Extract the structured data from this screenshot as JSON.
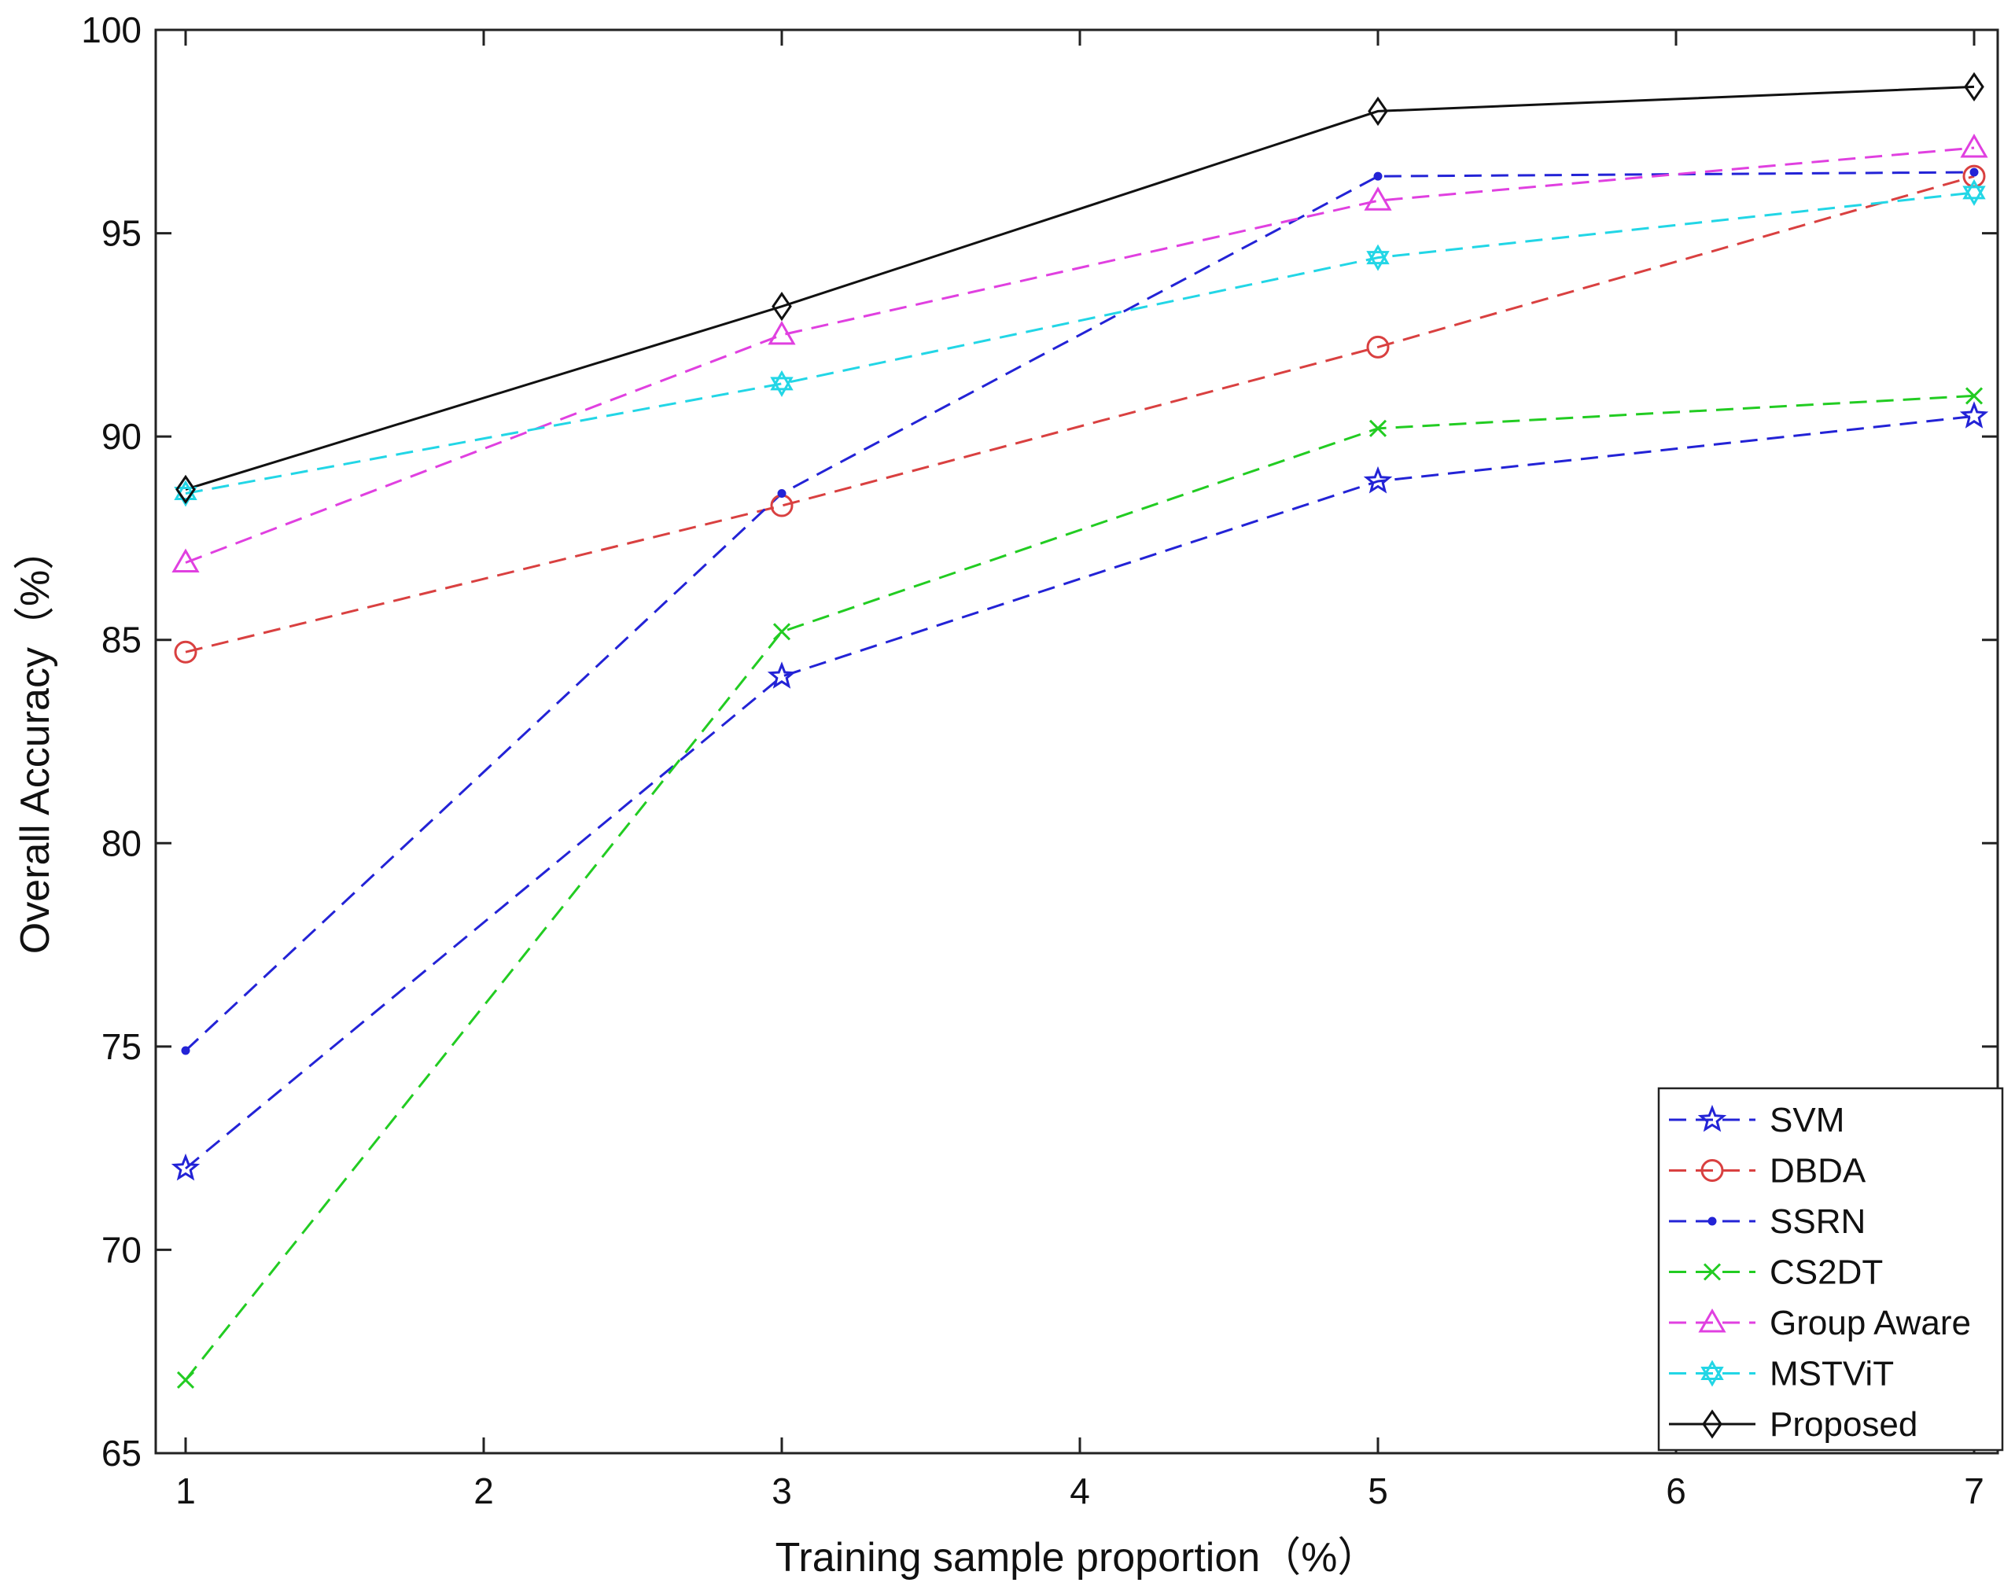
{
  "chart_data": {
    "type": "line",
    "xlabel": "Training sample proportion（%）",
    "ylabel": "Overall Accuracy（%）",
    "xlim": [
      1,
      7
    ],
    "ylim": [
      65,
      100
    ],
    "xticks": [
      1,
      2,
      3,
      4,
      5,
      6,
      7
    ],
    "yticks": [
      65,
      70,
      75,
      80,
      85,
      90,
      95,
      100
    ],
    "grid": false,
    "legend_position": "bottom-right",
    "x": [
      1,
      3,
      5,
      7
    ],
    "series": [
      {
        "name": "SVM",
        "values": [
          72.0,
          84.1,
          88.9,
          90.5
        ],
        "color": "#2323d6",
        "marker": "star",
        "dashed": true
      },
      {
        "name": "DBDA",
        "values": [
          84.7,
          88.3,
          92.2,
          96.4
        ],
        "color": "#d94040",
        "marker": "circle",
        "dashed": true
      },
      {
        "name": "SSRN",
        "values": [
          74.9,
          88.6,
          96.4,
          96.5
        ],
        "color": "#2323d6",
        "marker": "dot",
        "dashed": true
      },
      {
        "name": "CS2DT",
        "values": [
          66.8,
          85.2,
          90.2,
          91.0
        ],
        "color": "#22cc22",
        "marker": "x",
        "dashed": true
      },
      {
        "name": "Group Aware",
        "values": [
          86.9,
          92.5,
          95.8,
          97.1
        ],
        "color": "#e040e0",
        "marker": "triangle",
        "dashed": true
      },
      {
        "name": "MSTViT",
        "values": [
          88.6,
          91.3,
          94.4,
          96.0
        ],
        "color": "#22d6e6",
        "marker": "hexagram",
        "dashed": true
      },
      {
        "name": "Proposed",
        "values": [
          88.7,
          93.2,
          98.0,
          98.6
        ],
        "color": "#111111",
        "marker": "diamond",
        "dashed": false
      }
    ]
  }
}
